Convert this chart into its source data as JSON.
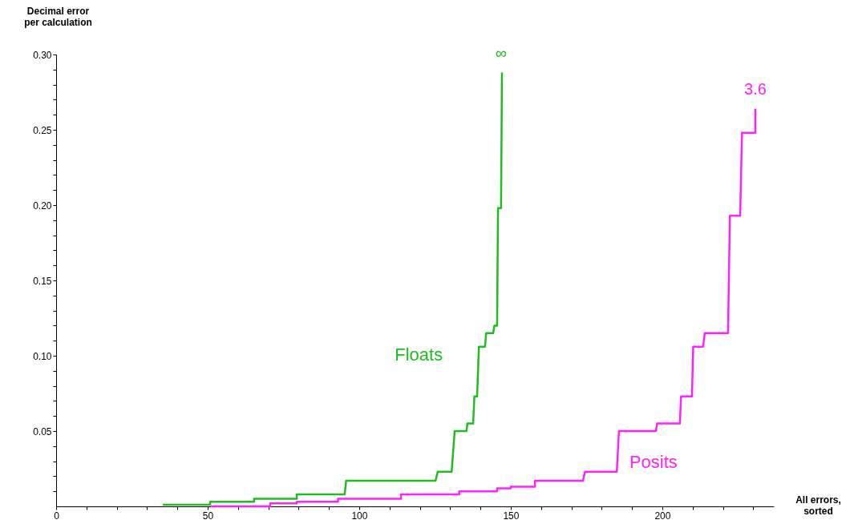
{
  "chart_data": {
    "type": "line",
    "xlabel": "All errors,\nsorted",
    "ylabel": "Decimal error\nper calculation",
    "xlim": [
      0,
      236.8
    ],
    "ylim": [
      0,
      0.3
    ],
    "xticks": [
      0,
      {
        "value": 10,
        "label": null
      },
      {
        "value": 20,
        "label": null
      },
      {
        "value": 30,
        "label": null
      },
      {
        "value": 40,
        "label": null
      },
      50,
      {
        "value": 60,
        "label": null
      },
      {
        "value": 70,
        "label": null
      },
      {
        "value": 80,
        "label": null
      },
      {
        "value": 90,
        "label": null
      },
      100,
      {
        "value": 110,
        "label": null
      },
      {
        "value": 120,
        "label": null
      },
      {
        "value": 130,
        "label": null
      },
      {
        "value": 140,
        "label": null
      },
      150,
      {
        "value": 160,
        "label": null
      },
      {
        "value": 170,
        "label": null
      },
      {
        "value": 180,
        "label": null
      },
      {
        "value": 190,
        "label": null
      },
      200,
      {
        "value": 210,
        "label": null
      },
      {
        "value": 220,
        "label": null
      },
      {
        "value": 230,
        "label": null
      }
    ],
    "yticks": [
      {
        "value": 0.01,
        "label": null
      },
      {
        "value": 0.02,
        "label": null
      },
      {
        "value": 0.03,
        "label": null
      },
      {
        "value": 0.04,
        "label": null
      },
      {
        "value": 0.05,
        "label": "0.05"
      },
      {
        "value": 0.06,
        "label": null
      },
      {
        "value": 0.07,
        "label": null
      },
      {
        "value": 0.08,
        "label": null
      },
      {
        "value": 0.09,
        "label": null
      },
      {
        "value": 0.1,
        "label": "0.10"
      },
      {
        "value": 0.11,
        "label": null
      },
      {
        "value": 0.12,
        "label": null
      },
      {
        "value": 0.13,
        "label": null
      },
      {
        "value": 0.14,
        "label": null
      },
      {
        "value": 0.15,
        "label": "0.15"
      },
      {
        "value": 0.16,
        "label": null
      },
      {
        "value": 0.17,
        "label": null
      },
      {
        "value": 0.18,
        "label": null
      },
      {
        "value": 0.19,
        "label": null
      },
      {
        "value": 0.2,
        "label": "0.20"
      },
      {
        "value": 0.21,
        "label": null
      },
      {
        "value": 0.22,
        "label": null
      },
      {
        "value": 0.23,
        "label": null
      },
      {
        "value": 0.24,
        "label": null
      },
      {
        "value": 0.25,
        "label": "0.25"
      },
      {
        "value": 0.26,
        "label": null
      },
      {
        "value": 0.27,
        "label": null
      },
      {
        "value": 0.28,
        "label": null
      },
      {
        "value": 0.29,
        "label": null
      },
      {
        "value": 0.3,
        "label": "0.30"
      }
    ],
    "grid": false,
    "marker": "none",
    "line_style": "solid",
    "series": [
      {
        "name": "Floats",
        "color": "#22bb22",
        "x": [
          35.2,
          50.8,
          50.8,
          65.3,
          65.3,
          79.4,
          79.4,
          95.2,
          95.7,
          125.2,
          125.9,
          130.5,
          131.5,
          135.4,
          135.7,
          137.6,
          138.0,
          138.9,
          139.5,
          141.5,
          141.9,
          144.2,
          144.6,
          145.5,
          145.8,
          146.8,
          147.1
        ],
        "values": [
          0.001,
          0.001,
          0.003,
          0.003,
          0.005,
          0.005,
          0.008,
          0.008,
          0.017,
          0.017,
          0.023,
          0.023,
          0.05,
          0.05,
          0.055,
          0.055,
          0.073,
          0.073,
          0.106,
          0.106,
          0.115,
          0.115,
          0.12,
          0.12,
          0.198,
          0.198,
          0.288
        ]
      },
      {
        "name": "Posits",
        "color": "#ff22ff",
        "x": [
          51,
          70.6,
          70.6,
          79.4,
          79.4,
          93,
          93,
          113.8,
          113.8,
          133,
          133,
          145.5,
          145.5,
          150,
          150,
          158,
          158,
          173.8,
          174.5,
          185,
          185.7,
          197.9,
          198.3,
          205.8,
          206.2,
          209.8,
          210.2,
          213.5,
          214,
          221.7,
          222.3,
          225.7,
          226.3,
          230.7,
          230.7
        ],
        "values": [
          0,
          0,
          0.002,
          0.002,
          0.003,
          0.003,
          0.005,
          0.005,
          0.008,
          0.008,
          0.01,
          0.01,
          0.012,
          0.012,
          0.013,
          0.013,
          0.017,
          0.017,
          0.023,
          0.023,
          0.05,
          0.05,
          0.055,
          0.055,
          0.073,
          0.073,
          0.106,
          0.106,
          0.115,
          0.115,
          0.193,
          0.193,
          0.248,
          0.248,
          0.264
        ]
      }
    ],
    "annotations": [
      {
        "text": "∞",
        "x": 146.8,
        "y": 0.288
      },
      {
        "text": "3.6",
        "x": 230.7,
        "y": 0.264
      }
    ]
  }
}
